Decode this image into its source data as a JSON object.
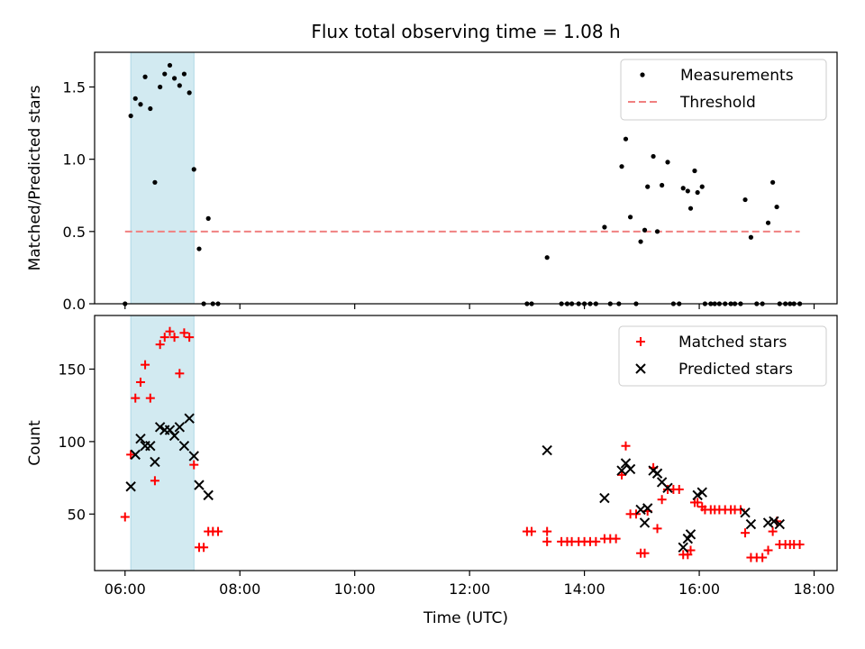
{
  "title": "Flux total observing time = 1.08 h",
  "chart_data": [
    {
      "type": "scatter",
      "ylabel": "Matched/Predicted stars",
      "xlim": [
        5.47,
        18.4
      ],
      "ylim": [
        0,
        1.74
      ],
      "yticks": [
        0,
        0.5,
        1.0,
        1.5
      ],
      "yticklabels": [
        "0.0",
        "0.5",
        "1.0",
        "1.5"
      ],
      "xticks": [
        6,
        8,
        10,
        12,
        14,
        16,
        18
      ],
      "shaded_interval": [
        6.1,
        7.2
      ],
      "shade_color": "#add8e6",
      "legend_position": "upper right",
      "legend": [
        {
          "label": "Measurements",
          "marker": "dot",
          "color": "#000000"
        },
        {
          "label": "Threshold",
          "marker": "dashed-line",
          "color": "#f08080"
        }
      ],
      "threshold": {
        "y": 0.5,
        "x": [
          6.0,
          17.75
        ]
      },
      "series": [
        {
          "name": "Measurements",
          "color": "#000000",
          "points": [
            [
              6.0,
              0.0
            ],
            [
              6.1,
              1.3
            ],
            [
              6.18,
              1.42
            ],
            [
              6.27,
              1.38
            ],
            [
              6.35,
              1.57
            ],
            [
              6.44,
              1.35
            ],
            [
              6.52,
              0.84
            ],
            [
              6.61,
              1.5
            ],
            [
              6.69,
              1.59
            ],
            [
              6.78,
              1.65
            ],
            [
              6.86,
              1.56
            ],
            [
              6.95,
              1.51
            ],
            [
              7.03,
              1.59
            ],
            [
              7.12,
              1.46
            ],
            [
              7.2,
              0.93
            ],
            [
              7.29,
              0.38
            ],
            [
              7.37,
              0.0
            ],
            [
              7.45,
              0.59
            ],
            [
              7.53,
              0.0
            ],
            [
              7.62,
              0.0
            ],
            [
              13.0,
              0.0
            ],
            [
              13.08,
              0.0
            ],
            [
              13.35,
              0.32
            ],
            [
              13.6,
              0.0
            ],
            [
              13.7,
              0.0
            ],
            [
              13.78,
              0.0
            ],
            [
              13.9,
              0.0
            ],
            [
              14.0,
              0.0
            ],
            [
              14.1,
              0.0
            ],
            [
              14.2,
              0.0
            ],
            [
              14.35,
              0.53
            ],
            [
              14.45,
              0.0
            ],
            [
              14.6,
              0.0
            ],
            [
              14.65,
              0.95
            ],
            [
              14.72,
              1.14
            ],
            [
              14.8,
              0.6
            ],
            [
              14.9,
              0.0
            ],
            [
              14.98,
              0.43
            ],
            [
              15.05,
              0.51
            ],
            [
              15.1,
              0.81
            ],
            [
              15.2,
              1.02
            ],
            [
              15.27,
              0.5
            ],
            [
              15.35,
              0.82
            ],
            [
              15.45,
              0.98
            ],
            [
              15.55,
              0.0
            ],
            [
              15.65,
              0.0
            ],
            [
              15.72,
              0.8
            ],
            [
              15.8,
              0.78
            ],
            [
              15.85,
              0.66
            ],
            [
              15.92,
              0.92
            ],
            [
              15.97,
              0.77
            ],
            [
              16.05,
              0.81
            ],
            [
              16.1,
              0.0
            ],
            [
              16.2,
              0.0
            ],
            [
              16.27,
              0.0
            ],
            [
              16.35,
              0.0
            ],
            [
              16.45,
              0.0
            ],
            [
              16.55,
              0.0
            ],
            [
              16.62,
              0.0
            ],
            [
              16.72,
              0.0
            ],
            [
              16.8,
              0.72
            ],
            [
              16.9,
              0.46
            ],
            [
              17.0,
              0.0
            ],
            [
              17.1,
              0.0
            ],
            [
              17.2,
              0.56
            ],
            [
              17.28,
              0.84
            ],
            [
              17.35,
              0.67
            ],
            [
              17.4,
              0.0
            ],
            [
              17.5,
              0.0
            ],
            [
              17.58,
              0.0
            ],
            [
              17.65,
              0.0
            ],
            [
              17.75,
              0.0
            ]
          ]
        }
      ]
    },
    {
      "type": "scatter",
      "xlabel": "Time (UTC)",
      "ylabel": "Count",
      "xlim": [
        5.47,
        18.4
      ],
      "ylim": [
        11,
        187
      ],
      "yticks": [
        50,
        100,
        150
      ],
      "yticklabels": [
        "50",
        "100",
        "150"
      ],
      "xticks": [
        6,
        8,
        10,
        12,
        14,
        16,
        18
      ],
      "xticklabels": [
        "06:00",
        "08:00",
        "10:00",
        "12:00",
        "14:00",
        "16:00",
        "18:00"
      ],
      "shaded_interval": [
        6.1,
        7.2
      ],
      "shade_color": "#add8e6",
      "legend_position": "upper right",
      "legend": [
        {
          "label": "Matched stars",
          "marker": "plus",
          "color": "#ff0000"
        },
        {
          "label": "Predicted stars",
          "marker": "x",
          "color": "#000000"
        }
      ],
      "series": [
        {
          "name": "Matched stars",
          "marker": "plus",
          "color": "#ff0000",
          "points": [
            [
              6.0,
              48
            ],
            [
              6.1,
              91
            ],
            [
              6.18,
              130
            ],
            [
              6.27,
              141
            ],
            [
              6.35,
              153
            ],
            [
              6.44,
              130
            ],
            [
              6.52,
              73
            ],
            [
              6.61,
              167
            ],
            [
              6.69,
              172
            ],
            [
              6.78,
              176
            ],
            [
              6.86,
              172
            ],
            [
              6.95,
              147
            ],
            [
              7.03,
              175
            ],
            [
              7.12,
              172
            ],
            [
              7.2,
              84
            ],
            [
              7.29,
              27
            ],
            [
              7.37,
              27
            ],
            [
              7.45,
              38
            ],
            [
              7.53,
              38
            ],
            [
              7.62,
              38
            ],
            [
              13.0,
              38
            ],
            [
              13.08,
              38
            ],
            [
              13.35,
              38
            ],
            [
              13.35,
              31
            ],
            [
              13.6,
              31
            ],
            [
              13.7,
              31
            ],
            [
              13.78,
              31
            ],
            [
              13.9,
              31
            ],
            [
              14.0,
              31
            ],
            [
              14.1,
              31
            ],
            [
              14.2,
              31
            ],
            [
              14.35,
              33
            ],
            [
              14.45,
              33
            ],
            [
              14.55,
              33
            ],
            [
              14.65,
              77
            ],
            [
              14.72,
              97
            ],
            [
              14.8,
              50
            ],
            [
              14.9,
              50
            ],
            [
              14.98,
              23
            ],
            [
              15.05,
              23
            ],
            [
              15.1,
              52
            ],
            [
              15.2,
              82
            ],
            [
              15.27,
              40
            ],
            [
              15.35,
              60
            ],
            [
              15.45,
              67
            ],
            [
              15.55,
              67
            ],
            [
              15.65,
              67
            ],
            [
              15.72,
              22
            ],
            [
              15.8,
              22
            ],
            [
              15.85,
              25
            ],
            [
              15.92,
              58
            ],
            [
              15.97,
              58
            ],
            [
              16.05,
              55
            ],
            [
              16.1,
              53
            ],
            [
              16.2,
              53
            ],
            [
              16.27,
              53
            ],
            [
              16.35,
              53
            ],
            [
              16.45,
              53
            ],
            [
              16.55,
              53
            ],
            [
              16.62,
              53
            ],
            [
              16.72,
              53
            ],
            [
              16.8,
              37
            ],
            [
              16.9,
              20
            ],
            [
              17.0,
              20
            ],
            [
              17.1,
              20
            ],
            [
              17.2,
              25
            ],
            [
              17.28,
              38
            ],
            [
              17.35,
              45
            ],
            [
              17.4,
              29
            ],
            [
              17.5,
              29
            ],
            [
              17.58,
              29
            ],
            [
              17.65,
              29
            ],
            [
              17.75,
              29
            ]
          ]
        },
        {
          "name": "Predicted stars",
          "marker": "x",
          "color": "#000000",
          "points": [
            [
              6.1,
              69
            ],
            [
              6.18,
              91
            ],
            [
              6.27,
              102
            ],
            [
              6.35,
              97
            ],
            [
              6.44,
              97
            ],
            [
              6.52,
              86
            ],
            [
              6.61,
              110
            ],
            [
              6.69,
              108
            ],
            [
              6.78,
              108
            ],
            [
              6.86,
              104
            ],
            [
              6.95,
              110
            ],
            [
              7.03,
              97
            ],
            [
              7.12,
              116
            ],
            [
              7.2,
              90
            ],
            [
              7.29,
              70
            ],
            [
              7.45,
              63
            ],
            [
              13.35,
              94
            ],
            [
              14.35,
              61
            ],
            [
              14.65,
              80
            ],
            [
              14.72,
              85
            ],
            [
              14.8,
              81
            ],
            [
              14.98,
              53
            ],
            [
              15.05,
              44
            ],
            [
              15.1,
              54
            ],
            [
              15.2,
              80
            ],
            [
              15.27,
              78
            ],
            [
              15.35,
              72
            ],
            [
              15.45,
              68
            ],
            [
              15.72,
              27
            ],
            [
              15.8,
              33
            ],
            [
              15.85,
              36
            ],
            [
              15.97,
              63
            ],
            [
              16.05,
              65
            ],
            [
              16.8,
              51
            ],
            [
              16.9,
              43
            ],
            [
              17.2,
              44
            ],
            [
              17.3,
              45
            ],
            [
              17.4,
              43
            ]
          ]
        }
      ]
    }
  ]
}
